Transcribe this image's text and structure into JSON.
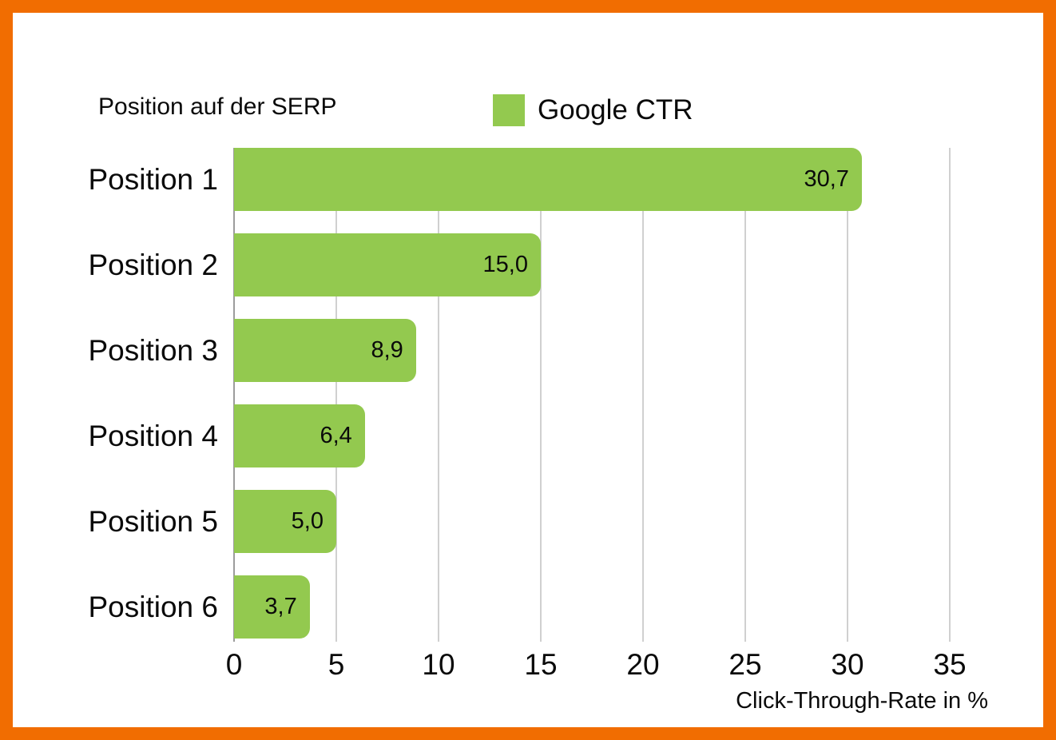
{
  "colors": {
    "border": "#F16D01",
    "bar": "#93C94F",
    "grid": "#D0D0D0",
    "axis": "#9C9C9C",
    "text": "#0A0A0A"
  },
  "chart_data": {
    "type": "bar",
    "orientation": "horizontal",
    "title": "Position auf der SERP",
    "xlabel": "Click-Through-Rate in %",
    "ylabel": "",
    "categories": [
      "Position 1",
      "Position 2",
      "Position 3",
      "Position 4",
      "Position 5",
      "Position 6"
    ],
    "series": [
      {
        "name": "Google CTR",
        "values": [
          30.7,
          15.0,
          8.9,
          6.4,
          5.0,
          3.7
        ]
      }
    ],
    "value_labels": [
      "30,7",
      "15,0",
      "8,9",
      "6,4",
      "5,0",
      "3,7"
    ],
    "x_ticks": [
      "0",
      "5",
      "10",
      "15",
      "20",
      "25",
      "30",
      "35"
    ],
    "xlim": [
      0,
      37.5
    ],
    "grid": true,
    "legend_position": "top-center",
    "bar_color": "#93C94F"
  }
}
